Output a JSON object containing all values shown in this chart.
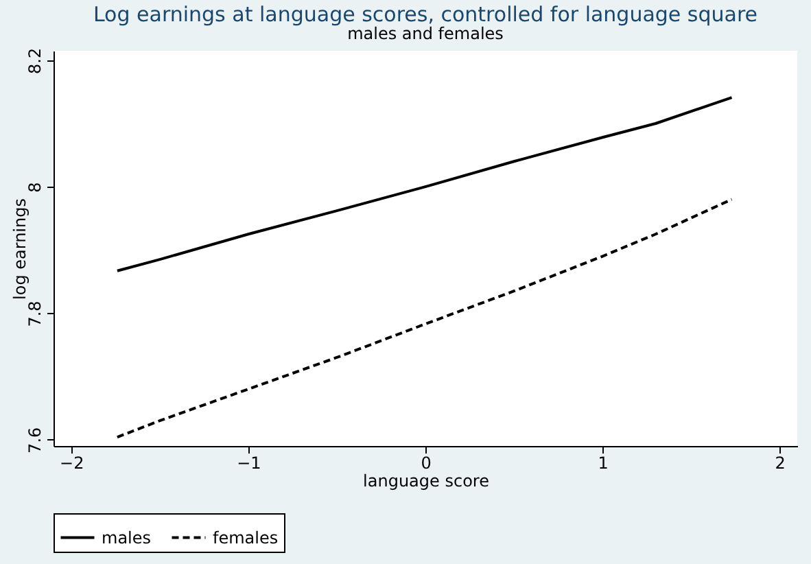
{
  "chart_data": {
    "type": "line",
    "title": "Log earnings at language scores, controlled for language square",
    "subtitle": "males and females",
    "xlabel": "language score",
    "ylabel": "log earnings",
    "x": [
      -1.74,
      -1.5,
      -1,
      -0.5,
      0,
      0.5,
      1,
      1.3,
      1.73
    ],
    "series": [
      {
        "name": "males",
        "color": "#000000",
        "line_style": "solid",
        "values": [
          7.867,
          7.885,
          7.925,
          7.962,
          8.0,
          8.04,
          8.078,
          8.1,
          8.141
        ]
      },
      {
        "name": "females",
        "color": "#000000",
        "line_style": "dashed",
        "values": [
          7.604,
          7.63,
          7.68,
          7.73,
          7.783,
          7.835,
          7.89,
          7.925,
          7.98
        ]
      }
    ],
    "xlim": [
      -2.1,
      2.1
    ],
    "xticks": [
      -2,
      -1,
      0,
      1,
      2
    ],
    "ylim": [
      7.59,
      8.215
    ],
    "yticks": [
      7.6,
      7.8,
      8,
      8.2
    ],
    "grid": false,
    "legend": "bottom",
    "marker": "none"
  }
}
